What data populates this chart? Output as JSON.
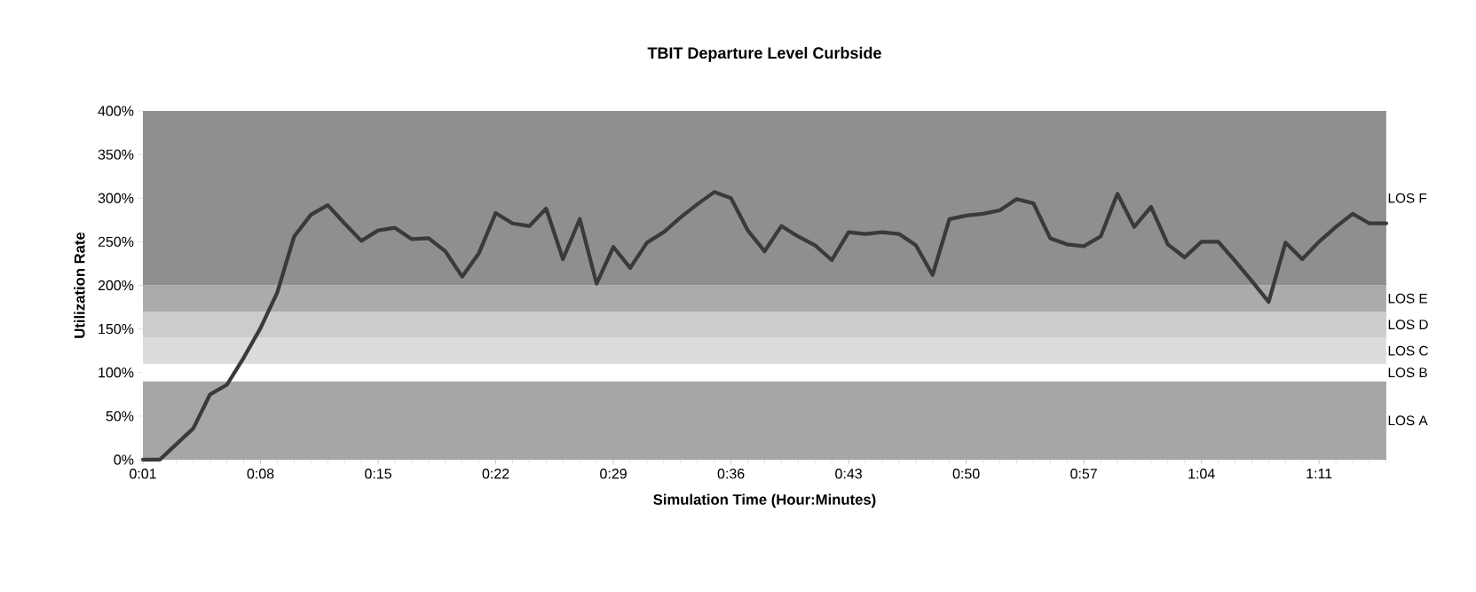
{
  "chart_data": {
    "type": "line",
    "title": "TBIT Departure Level Curbside",
    "xlabel": "Simulation Time (Hour:Minutes)",
    "ylabel": "Utilization Rate",
    "categories": [
      "0:01",
      null,
      null,
      null,
      null,
      null,
      null,
      "0:08",
      null,
      null,
      null,
      null,
      null,
      null,
      "0:15",
      null,
      null,
      null,
      null,
      null,
      null,
      "0:22",
      null,
      null,
      null,
      null,
      null,
      null,
      "0:29",
      null,
      null,
      null,
      null,
      null,
      null,
      "0:36",
      null,
      null,
      null,
      null,
      null,
      null,
      "0:43",
      null,
      null,
      null,
      null,
      null,
      null,
      "0:50",
      null,
      null,
      null,
      null,
      null,
      null,
      "0:57",
      null,
      null,
      null,
      null,
      null,
      null,
      "1:04",
      null,
      null,
      null,
      null,
      null,
      null,
      "1:11",
      null,
      null,
      null,
      null
    ],
    "series": [
      {
        "color": "#3a3a3a",
        "values": [
          0,
          0,
          18,
          36,
          75,
          86,
          117,
          151,
          192,
          256,
          281,
          292,
          271,
          251,
          263,
          266,
          253,
          254,
          239,
          210,
          237,
          283,
          271,
          268,
          288,
          230,
          276,
          202,
          244,
          220,
          249,
          261,
          278,
          293,
          307,
          300,
          263,
          239,
          268,
          256,
          246,
          229,
          261,
          259,
          261,
          259,
          246,
          212,
          276,
          280,
          282,
          286,
          299,
          294,
          254,
          247,
          245,
          256,
          305,
          267,
          290,
          247,
          232,
          250,
          250,
          228,
          205,
          181,
          249,
          230,
          250,
          267,
          282,
          271,
          271
        ]
      }
    ],
    "ylim": [
      0,
      400
    ],
    "yticks": [
      {
        "value": 0,
        "label": "0%"
      },
      {
        "value": 50,
        "label": "50%"
      },
      {
        "value": 100,
        "label": "100%"
      },
      {
        "value": 150,
        "label": "150%"
      },
      {
        "value": 200,
        "label": "200%"
      },
      {
        "value": 250,
        "label": "250%"
      },
      {
        "value": 300,
        "label": "300%"
      },
      {
        "value": 350,
        "label": "350%"
      },
      {
        "value": 400,
        "label": "400%"
      }
    ],
    "bands": [
      {
        "axis": "y",
        "from": 0,
        "to": 90,
        "label": "LOS A",
        "color": "#a6a6a6"
      },
      {
        "axis": "y",
        "from": 90,
        "to": 110,
        "label": "LOS B",
        "color": "#ffffff"
      },
      {
        "axis": "y",
        "from": 110,
        "to": 140,
        "label": "LOS C",
        "color": "#dcdcdc"
      },
      {
        "axis": "y",
        "from": 140,
        "to": 170,
        "label": "LOS D",
        "color": "#cccccc"
      },
      {
        "axis": "y",
        "from": 170,
        "to": 200,
        "label": "LOS E",
        "color": "#ababab"
      },
      {
        "axis": "y",
        "from": 200,
        "to": 400,
        "label": "LOS F",
        "color": "#8f8f8f"
      }
    ],
    "grid": false,
    "legend": false,
    "marker": "none",
    "line_style": "solid"
  }
}
